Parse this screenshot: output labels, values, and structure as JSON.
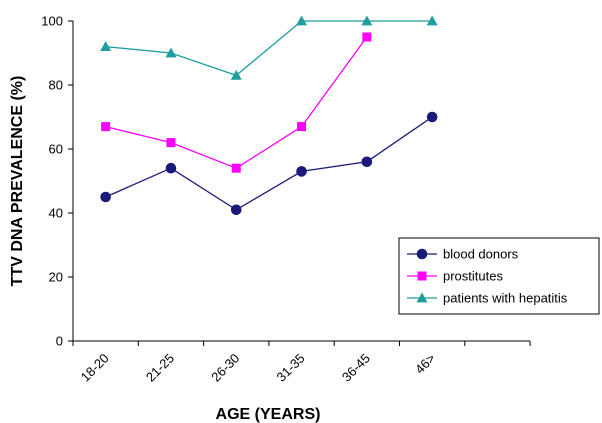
{
  "chart_data": {
    "type": "line",
    "title": "",
    "xlabel": "AGE (YEARS)",
    "ylabel": "TTV DNA PREVALENCE (%)",
    "categories": [
      "18-20",
      "21-25",
      "26-30",
      "31-35",
      "36-45",
      "46>"
    ],
    "ylim": [
      0,
      100
    ],
    "y_ticks": [
      0,
      20,
      40,
      60,
      80,
      100
    ],
    "grid": false,
    "legend_position": "lower-right",
    "series": [
      {
        "name": "blood donors",
        "color": "#1a1a7a",
        "marker": "circle",
        "values": [
          45,
          54,
          41,
          53,
          56,
          70
        ]
      },
      {
        "name": "prostitutes",
        "color": "#ff00ff",
        "marker": "square",
        "values": [
          67,
          62,
          54,
          67,
          95,
          null
        ]
      },
      {
        "name": "patients with hepatitis",
        "color": "#1f9e9e",
        "marker": "triangle",
        "values": [
          92,
          90,
          83,
          100,
          100,
          100
        ]
      }
    ]
  }
}
